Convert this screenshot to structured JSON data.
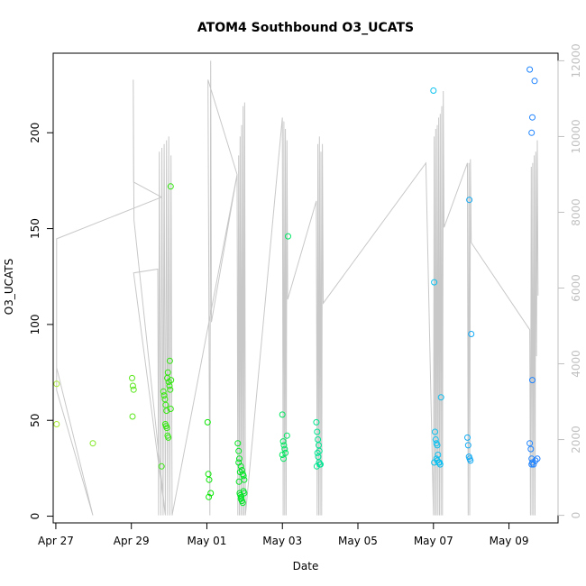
{
  "chart_data": {
    "type": "scatter",
    "title": "ATOM4 Southbound O3_UCATS",
    "xlabel": "Date",
    "ylabel": "O3_UCATS",
    "x_unit": "days since Apr 27 00:00",
    "x_ticks": [
      {
        "label": "Apr 27",
        "value": 0
      },
      {
        "label": "Apr 29",
        "value": 2
      },
      {
        "label": "May 01",
        "value": 4
      },
      {
        "label": "May 03",
        "value": 6
      },
      {
        "label": "May 05",
        "value": 8
      },
      {
        "label": "May 07",
        "value": 10
      },
      {
        "label": "May 09",
        "value": 12
      }
    ],
    "xlim": [
      -0.07,
      13.3
    ],
    "ylim": [
      -3.5,
      241.5
    ],
    "y_ticks": [
      0,
      50,
      100,
      150,
      200
    ],
    "y2_ticks": [
      0,
      2000,
      4000,
      6000,
      8000,
      10000,
      12000
    ],
    "y2lim": [
      -200,
      12200
    ],
    "grid": false,
    "point_color_ramp": [
      "#a8e830",
      "#00e600",
      "#00e6e6",
      "#1f7fff"
    ],
    "series": [
      {
        "kind": "points",
        "points": [
          [
            0.02,
            69
          ],
          [
            0.02,
            48
          ],
          [
            0.98,
            38
          ],
          [
            2.02,
            72
          ],
          [
            2.04,
            68
          ],
          [
            2.06,
            66
          ],
          [
            2.03,
            52
          ],
          [
            2.8,
            26
          ],
          [
            2.85,
            65
          ],
          [
            2.87,
            63
          ],
          [
            2.89,
            61
          ],
          [
            2.91,
            58
          ],
          [
            2.93,
            55
          ],
          [
            2.95,
            72
          ],
          [
            2.97,
            75
          ],
          [
            2.99,
            70
          ],
          [
            3.01,
            68
          ],
          [
            3.03,
            66
          ],
          [
            3.05,
            71
          ],
          [
            3.02,
            81
          ],
          [
            3.04,
            56
          ],
          [
            2.92,
            47
          ],
          [
            2.94,
            46
          ],
          [
            2.96,
            42
          ],
          [
            2.98,
            41
          ],
          [
            2.9,
            48
          ],
          [
            3.04,
            172
          ],
          [
            4.02,
            49
          ],
          [
            4.04,
            22
          ],
          [
            4.06,
            19
          ],
          [
            4.1,
            12
          ],
          [
            4.05,
            10
          ],
          [
            4.82,
            38
          ],
          [
            4.84,
            34
          ],
          [
            4.86,
            30
          ],
          [
            4.84,
            28
          ],
          [
            4.9,
            26
          ],
          [
            4.93,
            24
          ],
          [
            4.88,
            23
          ],
          [
            4.95,
            22
          ],
          [
            4.97,
            21
          ],
          [
            4.99,
            19
          ],
          [
            4.85,
            18
          ],
          [
            4.87,
            12
          ],
          [
            4.89,
            11
          ],
          [
            4.91,
            10
          ],
          [
            4.93,
            8
          ],
          [
            4.95,
            7
          ],
          [
            4.97,
            13
          ],
          [
            4.99,
            12
          ],
          [
            4.9,
            9
          ],
          [
            6.0,
            53
          ],
          [
            6.02,
            39
          ],
          [
            6.04,
            37
          ],
          [
            6.06,
            35
          ],
          [
            6.08,
            33
          ],
          [
            6.0,
            32
          ],
          [
            6.03,
            30
          ],
          [
            6.12,
            42
          ],
          [
            6.15,
            146
          ],
          [
            6.9,
            49
          ],
          [
            6.92,
            44
          ],
          [
            6.94,
            40
          ],
          [
            6.96,
            37
          ],
          [
            6.98,
            34
          ],
          [
            6.93,
            33
          ],
          [
            6.95,
            31
          ],
          [
            6.97,
            28
          ],
          [
            6.99,
            27
          ],
          [
            6.91,
            26
          ],
          [
            7.01,
            27
          ],
          [
            10.0,
            222
          ],
          [
            10.02,
            122
          ],
          [
            10.04,
            44
          ],
          [
            10.06,
            40
          ],
          [
            10.08,
            38
          ],
          [
            10.1,
            37
          ],
          [
            10.12,
            32
          ],
          [
            10.08,
            30
          ],
          [
            10.1,
            29
          ],
          [
            10.14,
            28
          ],
          [
            10.16,
            28
          ],
          [
            10.18,
            27
          ],
          [
            10.2,
            62
          ],
          [
            10.02,
            28
          ],
          [
            10.9,
            41
          ],
          [
            10.92,
            37
          ],
          [
            10.94,
            31
          ],
          [
            10.96,
            30
          ],
          [
            10.98,
            29
          ],
          [
            10.95,
            165
          ],
          [
            11.0,
            95
          ],
          [
            12.55,
            233
          ],
          [
            12.6,
            200
          ],
          [
            12.62,
            208
          ],
          [
            12.68,
            227
          ],
          [
            12.62,
            71
          ],
          [
            12.55,
            38
          ],
          [
            12.58,
            35
          ],
          [
            12.6,
            30
          ],
          [
            12.62,
            28
          ],
          [
            12.65,
            27
          ],
          [
            12.7,
            29
          ],
          [
            12.75,
            30
          ],
          [
            12.6,
            27
          ]
        ]
      },
      {
        "kind": "line",
        "axis": "right",
        "color": "#c8c8c8",
        "path": [
          [
            0.02,
            3900
          ],
          [
            0.98,
            0
          ],
          [
            0.02,
            3300
          ],
          [
            0.02,
            7300
          ],
          [
            2.8,
            8400
          ],
          [
            2.06,
            8800
          ],
          [
            2.05,
            11500
          ],
          [
            2.07,
            7800
          ],
          [
            2.9,
            0
          ],
          [
            2.06,
            6400
          ],
          [
            2.7,
            6500
          ],
          [
            2.72,
            0
          ],
          [
            2.74,
            9600
          ],
          [
            2.78,
            0
          ],
          [
            2.81,
            9700
          ],
          [
            2.84,
            0
          ],
          [
            2.87,
            9800
          ],
          [
            2.9,
            0
          ],
          [
            2.93,
            9900
          ],
          [
            2.96,
            0
          ],
          [
            2.99,
            10000
          ],
          [
            3.02,
            0
          ],
          [
            3.05,
            9500
          ],
          [
            3.08,
            0
          ],
          [
            4.8,
            9000
          ],
          [
            4.03,
            11500
          ],
          [
            4.06,
            4000
          ],
          [
            4.08,
            0
          ],
          [
            4.1,
            12000
          ],
          [
            4.12,
            5100
          ],
          [
            4.8,
            9000
          ],
          [
            4.82,
            0
          ],
          [
            4.84,
            9500
          ],
          [
            4.86,
            0
          ],
          [
            4.88,
            10000
          ],
          [
            4.9,
            0
          ],
          [
            4.92,
            10300
          ],
          [
            4.94,
            0
          ],
          [
            4.96,
            10800
          ],
          [
            4.98,
            0
          ],
          [
            5.0,
            10900
          ],
          [
            5.02,
            0
          ],
          [
            6.0,
            10500
          ],
          [
            6.02,
            0
          ],
          [
            6.04,
            10400
          ],
          [
            6.06,
            0
          ],
          [
            6.08,
            10200
          ],
          [
            6.1,
            0
          ],
          [
            6.12,
            9900
          ],
          [
            6.14,
            5700
          ],
          [
            6.9,
            8300
          ],
          [
            6.92,
            0
          ],
          [
            6.94,
            9800
          ],
          [
            6.96,
            0
          ],
          [
            6.98,
            10000
          ],
          [
            7.0,
            0
          ],
          [
            7.02,
            9600
          ],
          [
            7.04,
            0
          ],
          [
            7.06,
            9800
          ],
          [
            7.08,
            5600
          ],
          [
            9.8,
            9300
          ],
          [
            10.0,
            0
          ],
          [
            10.02,
            10000
          ],
          [
            10.04,
            0
          ],
          [
            10.06,
            10200
          ],
          [
            10.08,
            0
          ],
          [
            10.1,
            10300
          ],
          [
            10.12,
            0
          ],
          [
            10.14,
            10500
          ],
          [
            10.16,
            0
          ],
          [
            10.18,
            10600
          ],
          [
            10.2,
            0
          ],
          [
            10.22,
            10800
          ],
          [
            10.24,
            0
          ],
          [
            10.26,
            11200
          ],
          [
            10.28,
            7600
          ],
          [
            10.9,
            9300
          ],
          [
            10.92,
            0
          ],
          [
            10.94,
            9300
          ],
          [
            10.96,
            0
          ],
          [
            10.98,
            9400
          ],
          [
            11.0,
            7200
          ],
          [
            12.55,
            4900
          ],
          [
            12.57,
            0
          ],
          [
            12.59,
            9200
          ],
          [
            12.61,
            0
          ],
          [
            12.63,
            9300
          ],
          [
            12.65,
            0
          ],
          [
            12.67,
            9500
          ],
          [
            12.69,
            0
          ],
          [
            12.71,
            9600
          ],
          [
            12.73,
            4200
          ],
          [
            12.75,
            9900
          ],
          [
            12.77,
            5800
          ]
        ]
      }
    ]
  }
}
